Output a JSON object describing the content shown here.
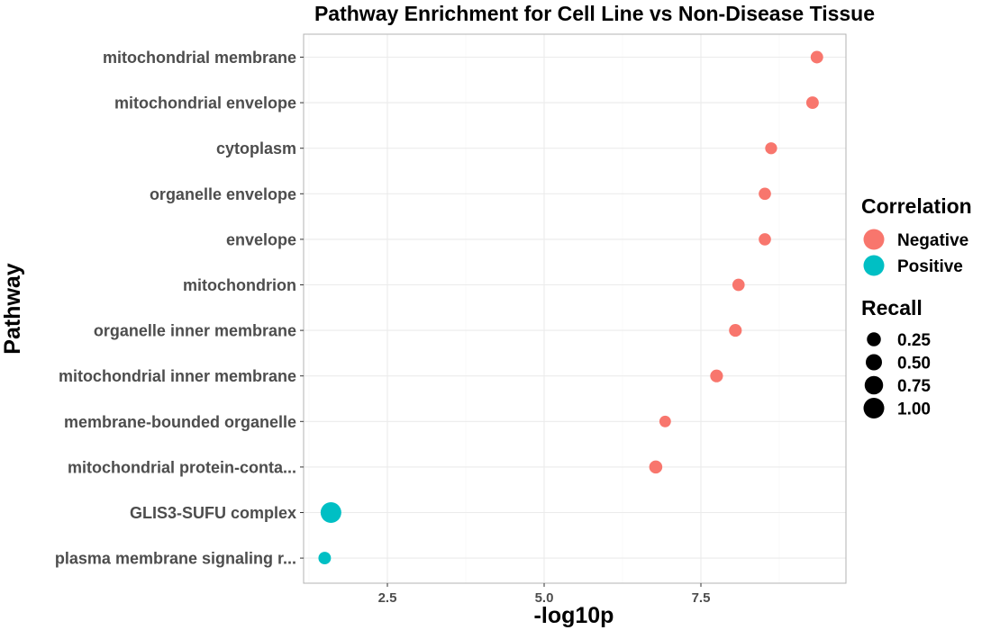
{
  "chart_data": {
    "type": "scatter",
    "title": "Pathway Enrichment for Cell Line vs Non-Disease Tissue",
    "xlabel": "-log10p",
    "ylabel": "Pathway",
    "xlim": [
      1.25,
      9.65
    ],
    "x_ticks": [
      2.5,
      5.0,
      7.5
    ],
    "x_tick_labels": [
      "2.5",
      "5.0",
      "7.5"
    ],
    "grid": true,
    "categories": [
      "mitochondrial membrane",
      "mitochondrial envelope",
      "cytoplasm",
      "organelle envelope",
      "envelope",
      "mitochondrion",
      "organelle inner membrane",
      "mitochondrial inner membrane",
      "membrane-bounded organelle",
      "mitochondrial protein-conta...",
      "GLIS3-SUFU complex",
      "plasma membrane signaling r..."
    ],
    "points": [
      {
        "pathway": "mitochondrial membrane",
        "x": 9.35,
        "recall": 0.3,
        "correlation": "Negative"
      },
      {
        "pathway": "mitochondrial envelope",
        "x": 9.28,
        "recall": 0.3,
        "correlation": "Negative"
      },
      {
        "pathway": "cytoplasm",
        "x": 8.62,
        "recall": 0.25,
        "correlation": "Negative"
      },
      {
        "pathway": "organelle envelope",
        "x": 8.52,
        "recall": 0.28,
        "correlation": "Negative"
      },
      {
        "pathway": "envelope",
        "x": 8.52,
        "recall": 0.28,
        "correlation": "Negative"
      },
      {
        "pathway": "mitochondrion",
        "x": 8.1,
        "recall": 0.28,
        "correlation": "Negative"
      },
      {
        "pathway": "organelle inner membrane",
        "x": 8.05,
        "recall": 0.32,
        "correlation": "Negative"
      },
      {
        "pathway": "mitochondrial inner membrane",
        "x": 7.75,
        "recall": 0.32,
        "correlation": "Negative"
      },
      {
        "pathway": "membrane-bounded organelle",
        "x": 6.93,
        "recall": 0.22,
        "correlation": "Negative"
      },
      {
        "pathway": "mitochondrial protein-conta...",
        "x": 6.78,
        "recall": 0.35,
        "correlation": "Negative"
      },
      {
        "pathway": "GLIS3-SUFU complex",
        "x": 1.6,
        "recall": 1.0,
        "correlation": "Positive"
      },
      {
        "pathway": "plasma membrane signaling r...",
        "x": 1.5,
        "recall": 0.3,
        "correlation": "Positive"
      }
    ],
    "legend": {
      "placement": "right",
      "color_title": "Correlation",
      "color_entries": [
        {
          "label": "Negative",
          "color": "#f8766d"
        },
        {
          "label": "Positive",
          "color": "#00bfc4"
        }
      ],
      "size_title": "Recall",
      "size_entries": [
        {
          "label": "0.25",
          "value": 0.25
        },
        {
          "label": "0.50",
          "value": 0.5
        },
        {
          "label": "0.75",
          "value": 0.75
        },
        {
          "label": "1.00",
          "value": 1.0
        }
      ]
    },
    "colors": {
      "Negative": "#f8766d",
      "Positive": "#00bfc4",
      "size_key": "#000000"
    }
  }
}
